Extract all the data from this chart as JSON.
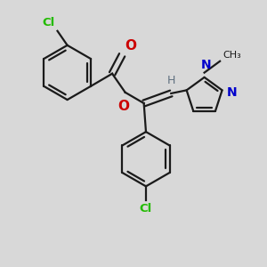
{
  "bg_color": "#d8d8d8",
  "bond_color": "#1a1a1a",
  "cl_color": "#22bb00",
  "o_color": "#cc0000",
  "n_color": "#0000cc",
  "h_color": "#607080",
  "lw": 1.6,
  "fig_w": 3.0,
  "fig_h": 3.0,
  "dpi": 100,
  "xlim": [
    0,
    10
  ],
  "ylim": [
    0,
    10
  ]
}
